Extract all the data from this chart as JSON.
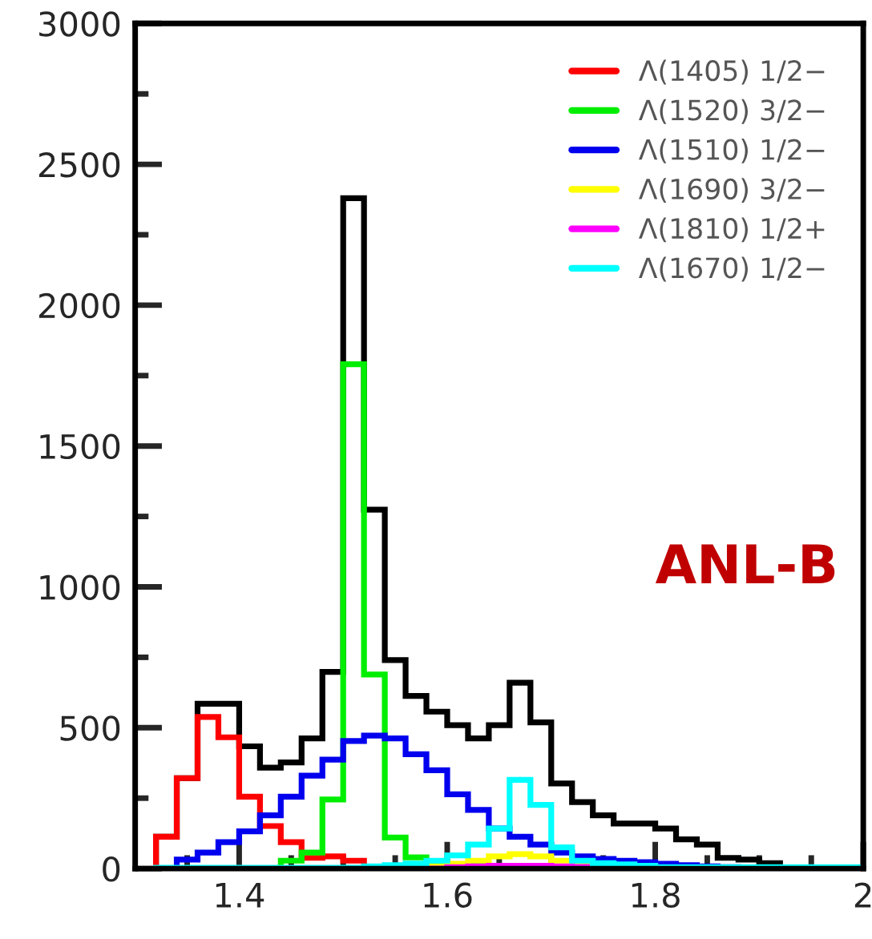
{
  "chart_data": {
    "type": "histogram",
    "bins": [
      1.32,
      1.34,
      1.36,
      1.38,
      1.4,
      1.42,
      1.44,
      1.46,
      1.48,
      1.5,
      1.52,
      1.54,
      1.56,
      1.58,
      1.6,
      1.62,
      1.64,
      1.66,
      1.68,
      1.7,
      1.72,
      1.74,
      1.76,
      1.78,
      1.8,
      1.82,
      1.84,
      1.86,
      1.88,
      1.9,
      1.92,
      1.94,
      1.96,
      1.98,
      2.0
    ],
    "series": [
      {
        "color": "#000000",
        "values": [
          113,
          321,
          585,
          585,
          434,
          358,
          377,
          462,
          698,
          2380,
          1274,
          740,
          613,
          557,
          509,
          462,
          509,
          660,
          519,
          302,
          236,
          189,
          160,
          160,
          142,
          104,
          85,
          38,
          32,
          19,
          0,
          0,
          0,
          0
        ]
      },
      {
        "name": "Λ(1405) 1/2−",
        "color": "#ff0000",
        "values": [
          113,
          321,
          538,
          466,
          255,
          151,
          94,
          38,
          43,
          28,
          0,
          0,
          0,
          0,
          0,
          0,
          0,
          0,
          0,
          0,
          0,
          0,
          0,
          0,
          0,
          0,
          0,
          0,
          0,
          0,
          0,
          0,
          0,
          0
        ]
      },
      {
        "name": "Λ(1520) 3/2−",
        "color": "#00ee00",
        "values": [
          0,
          0,
          0,
          0,
          0,
          0,
          28,
          57,
          245,
          1790,
          689,
          110,
          40,
          25,
          15,
          10,
          5,
          0,
          0,
          0,
          0,
          0,
          0,
          0,
          0,
          0,
          0,
          0,
          0,
          0,
          0,
          0,
          0,
          0
        ]
      },
      {
        "name": "Λ(1510) 1/2−",
        "color": "#0000ee",
        "values": [
          0,
          32,
          57,
          94,
          132,
          189,
          255,
          330,
          387,
          453,
          472,
          462,
          406,
          349,
          264,
          208,
          142,
          113,
          85,
          57,
          43,
          34,
          28,
          23,
          17,
          12,
          8,
          5,
          0,
          0,
          0,
          0,
          0,
          0
        ]
      },
      {
        "name": "Λ(1690) 3/2−",
        "color": "#ffff00",
        "values": [
          0,
          0,
          0,
          0,
          0,
          0,
          0,
          0,
          0,
          0,
          0,
          0,
          0,
          8,
          17,
          28,
          43,
          51,
          43,
          28,
          13,
          0,
          0,
          0,
          0,
          0,
          0,
          0,
          0,
          0,
          0,
          0,
          0,
          0
        ]
      },
      {
        "name": "Λ(1810) 1/2+",
        "color": "#ff00ff",
        "values": [
          0,
          0,
          0,
          0,
          0,
          0,
          0,
          0,
          0,
          0,
          0,
          0,
          0,
          0,
          5,
          8,
          10,
          10,
          10,
          8,
          6,
          3,
          0,
          0,
          0,
          0,
          0,
          0,
          0,
          0,
          0,
          0,
          0,
          0
        ]
      },
      {
        "name": "Λ(1670) 1/2−",
        "color": "#00ffff",
        "values": [
          3,
          3,
          3,
          3,
          3,
          3,
          3,
          3,
          3,
          3,
          8,
          12,
          18,
          28,
          47,
          85,
          142,
          315,
          226,
          75,
          28,
          19,
          15,
          10,
          5,
          5,
          5,
          5,
          5,
          5,
          5,
          5,
          5,
          5
        ]
      }
    ],
    "xlim": [
      1.3,
      2.0
    ],
    "xticks": [
      {
        "value": 1.35,
        "label": null
      },
      1.4,
      {
        "value": 1.45,
        "label": null
      },
      {
        "value": 1.5,
        "label": null
      },
      {
        "value": 1.55,
        "label": null
      },
      1.6,
      {
        "value": 1.65,
        "label": null
      },
      {
        "value": 1.7,
        "label": null
      },
      {
        "value": 1.75,
        "label": null
      },
      1.8,
      {
        "value": 1.85,
        "label": null
      },
      {
        "value": 1.9,
        "label": null
      },
      {
        "value": 1.95,
        "label": null
      },
      2
    ],
    "ylim": [
      0,
      3000
    ],
    "yticks": [
      0,
      {
        "value": 250,
        "label": null
      },
      500,
      {
        "value": 750,
        "label": null
      },
      1000,
      {
        "value": 1250,
        "label": null
      },
      1500,
      {
        "value": 1750,
        "label": null
      },
      2000,
      {
        "value": 2250,
        "label": null
      },
      2500,
      {
        "value": 2750,
        "label": null
      },
      3000
    ],
    "legend": "top right",
    "grid": false,
    "annotations": [
      "ANL-B"
    ]
  }
}
